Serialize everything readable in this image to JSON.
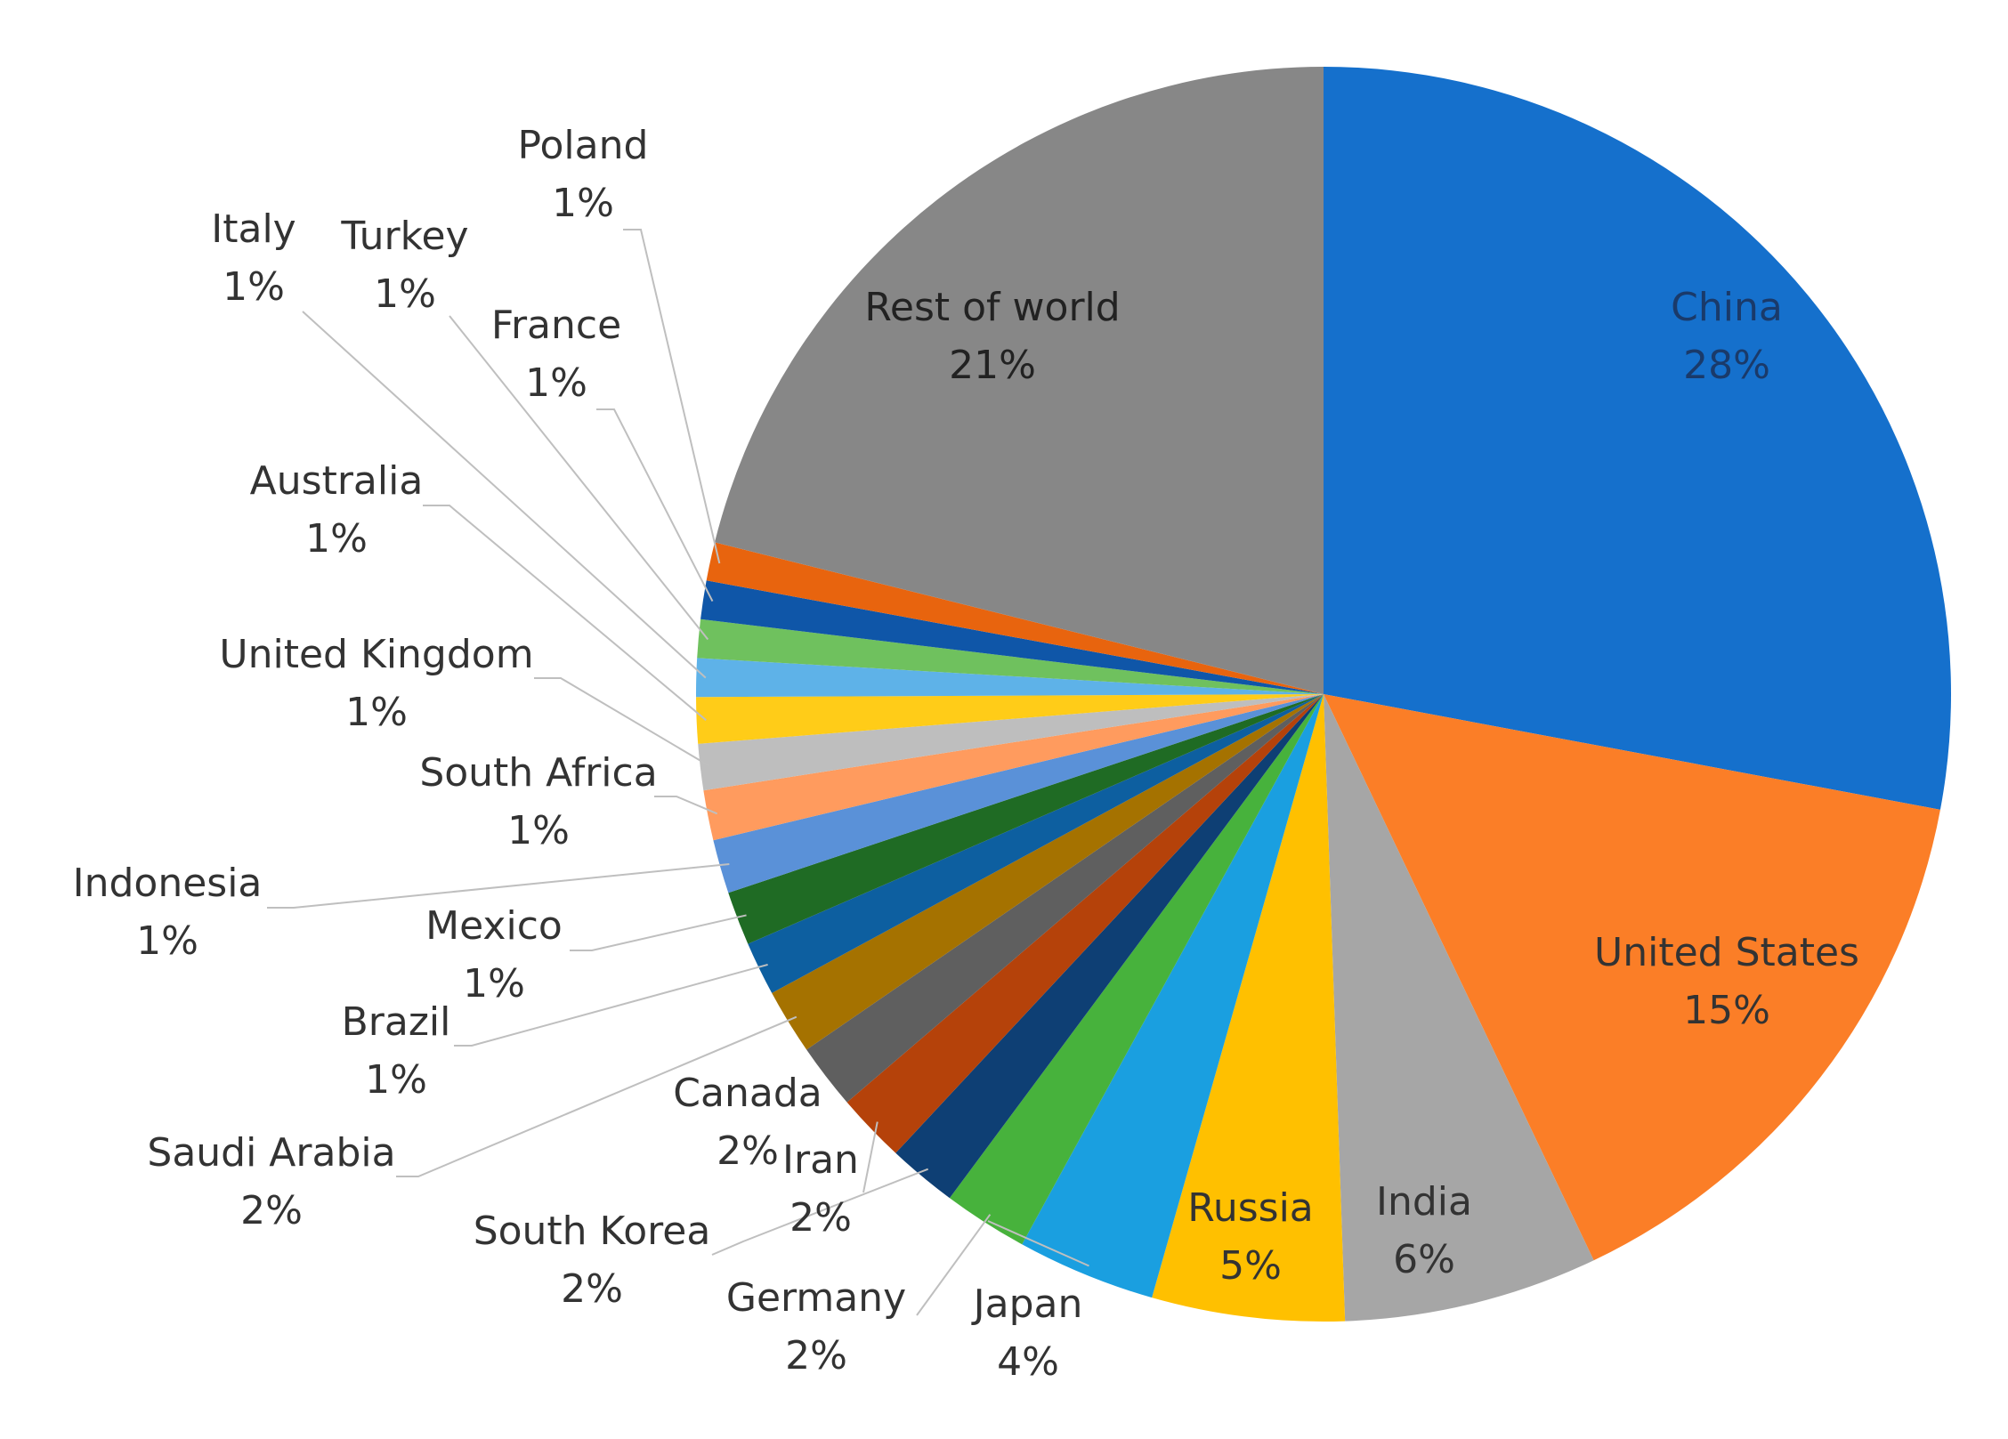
{
  "chart_data": {
    "type": "pie",
    "title": "",
    "start_angle_deg": 0,
    "direction": "clockwise",
    "slices": [
      {
        "label": "China",
        "percent_label": "28%",
        "value": 28.2,
        "color": "#1570CC"
      },
      {
        "label": "United States",
        "percent_label": "15%",
        "value": 15.1,
        "color": "#FB7E27"
      },
      {
        "label": "India",
        "percent_label": "6%",
        "value": 6.6,
        "color": "#A6A6A6"
      },
      {
        "label": "Russia",
        "percent_label": "5%",
        "value": 5.0,
        "color": "#FFC000"
      },
      {
        "label": "Japan",
        "percent_label": "4%",
        "value": 3.6,
        "color": "#1A9FE0"
      },
      {
        "label": "Germany",
        "percent_label": "2%",
        "value": 2.2,
        "color": "#47B23C"
      },
      {
        "label": "South Korea",
        "percent_label": "2%",
        "value": 1.8,
        "color": "#0E3F74"
      },
      {
        "label": "Iran",
        "percent_label": "2%",
        "value": 1.8,
        "color": "#B5420A"
      },
      {
        "label": "Canada",
        "percent_label": "2%",
        "value": 1.7,
        "color": "#5F5F5F"
      },
      {
        "label": "Saudi Arabia",
        "percent_label": "2%",
        "value": 1.7,
        "color": "#A57200"
      },
      {
        "label": "Brazil",
        "percent_label": "1%",
        "value": 1.4,
        "color": "#0D5FA0"
      },
      {
        "label": "Mexico",
        "percent_label": "1%",
        "value": 1.4,
        "color": "#1F6B24"
      },
      {
        "label": "Indonesia",
        "percent_label": "1%",
        "value": 1.4,
        "color": "#5A91D8"
      },
      {
        "label": "South Africa",
        "percent_label": "1%",
        "value": 1.3,
        "color": "#FF9B5E"
      },
      {
        "label": "United Kingdom",
        "percent_label": "1%",
        "value": 1.2,
        "color": "#BEBEBE"
      },
      {
        "label": "Australia",
        "percent_label": "1%",
        "value": 1.2,
        "color": "#FFCC18"
      },
      {
        "label": "Italy",
        "percent_label": "1%",
        "value": 1.0,
        "color": "#5EB2E8"
      },
      {
        "label": "Turkey",
        "percent_label": "1%",
        "value": 1.0,
        "color": "#6FC15E"
      },
      {
        "label": "France",
        "percent_label": "1%",
        "value": 1.0,
        "color": "#0F56A8"
      },
      {
        "label": "Poland",
        "percent_label": "1%",
        "value": 1.0,
        "color": "#E8640E"
      },
      {
        "label": "Rest of world",
        "percent_label": "21%",
        "value": 21.3,
        "color": "#878787"
      }
    ],
    "legend": "none"
  }
}
